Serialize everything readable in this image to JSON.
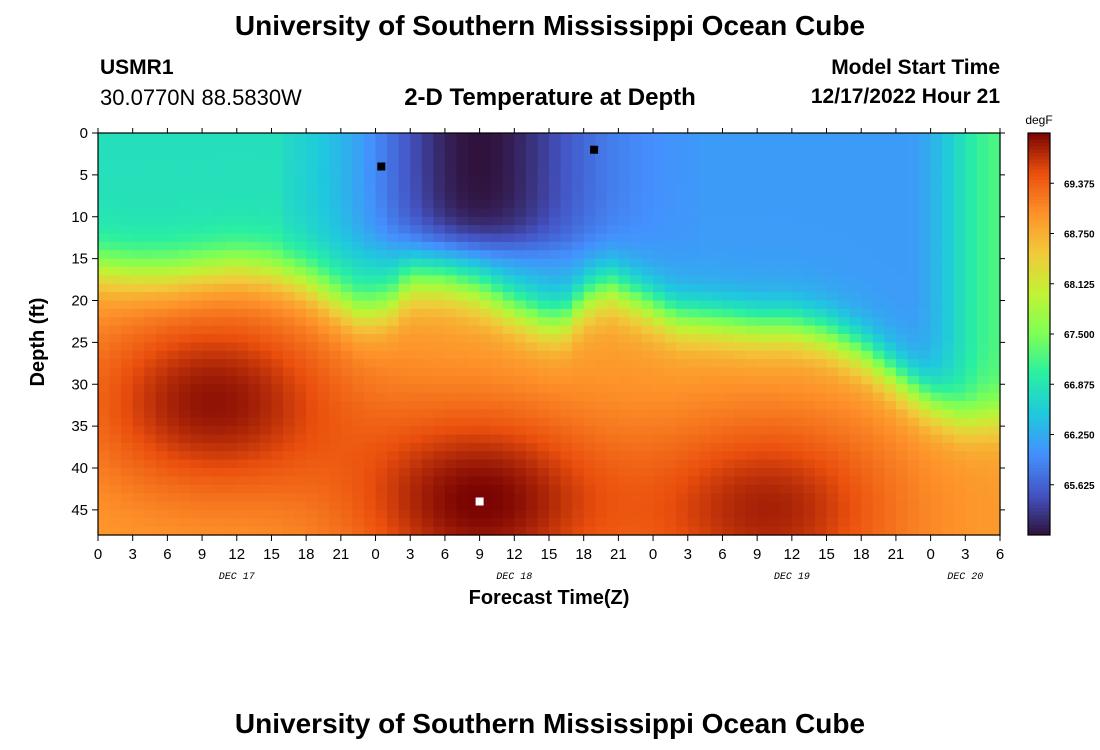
{
  "header": {
    "title": "University of Southern Mississippi Ocean Cube",
    "station_id": "USMR1",
    "station_coords": "30.0770N  88.5830W",
    "chart_title": "2-D Temperature at Depth",
    "model_start_label": "Model Start Time",
    "model_start_time": "12/17/2022 Hour 21"
  },
  "footer": {
    "title": "University of Southern Mississippi Ocean Cube"
  },
  "chart_data": {
    "type": "heatmap",
    "title": "2-D Temperature at Depth",
    "xlabel": "Forecast Time(Z)",
    "ylabel": "Depth (ft)",
    "x_hours_range": [
      0,
      78
    ],
    "x_tick_labels": [
      "0",
      "3",
      "6",
      "9",
      "12",
      "15",
      "18",
      "21",
      "0",
      "3",
      "6",
      "9",
      "12",
      "15",
      "18",
      "21",
      "0",
      "3",
      "6",
      "9",
      "12",
      "15",
      "18",
      "21",
      "0",
      "3",
      "6"
    ],
    "day_labels": [
      {
        "label": "DEC 17",
        "x_hours": 12
      },
      {
        "label": "DEC 18",
        "x_hours": 36
      },
      {
        "label": "DEC 19",
        "x_hours": 60
      },
      {
        "label": "DEC 20",
        "x_hours": 75
      }
    ],
    "ylim": [
      0,
      48
    ],
    "y_ticks": [
      0,
      5,
      10,
      15,
      20,
      25,
      30,
      35,
      40,
      45
    ],
    "y_inverted": true,
    "colorbar": {
      "unit": "degF",
      "range": [
        65.0,
        70.0
      ],
      "tick_values": [
        69.375,
        68.75,
        68.125,
        67.5,
        66.875,
        66.25,
        65.625
      ],
      "tick_labels": [
        "69.375",
        "68.750",
        "68.125",
        "67.500",
        "66.875",
        "66.250",
        "65.625"
      ],
      "colormap": "turbo"
    },
    "markers": [
      {
        "kind": "min",
        "x_hours": 24.5,
        "depth_ft": 4,
        "color": "#000000"
      },
      {
        "kind": "min",
        "x_hours": 42.9,
        "depth_ft": 2,
        "color": "#000000"
      },
      {
        "kind": "max",
        "x_hours": 33.0,
        "depth_ft": 44,
        "color": "#ffffff"
      }
    ],
    "thermocline_depth_ft": {
      "x_hours": [
        0,
        3,
        6,
        9,
        12,
        15,
        17,
        18,
        21,
        22.5,
        24,
        25.5,
        27,
        30,
        33,
        36,
        39,
        40.5,
        42,
        43,
        44.5,
        47,
        50,
        54,
        57,
        60,
        63,
        66,
        69,
        72,
        75,
        78
      ],
      "depth": [
        16,
        16.5,
        16.5,
        16,
        15.5,
        16,
        17,
        17.5,
        20,
        21,
        21,
        20,
        18,
        18,
        19,
        21,
        22.5,
        22,
        20,
        19,
        18.5,
        20,
        22,
        22.5,
        23,
        23,
        24,
        26,
        29,
        32,
        34,
        34
      ]
    },
    "cold_pool": {
      "x_hours_range": [
        18,
        50
      ],
      "center_x_hours": 33,
      "max_depth_ft": 16,
      "min_temp_degF": 65.0
    },
    "deep_warm_cores": [
      {
        "x_hours": 10,
        "depth_ft": 32,
        "temp_degF": 69.9
      },
      {
        "x_hours": 33,
        "depth_ft": 44,
        "temp_degF": 70.0
      },
      {
        "x_hours": 58,
        "depth_ft": 45,
        "temp_degF": 69.8
      }
    ],
    "surface_temps_degF": {
      "west_x_hours_0_15": 66.8,
      "east_x_hours_50_70": 66.1,
      "east_edge_x_hours_78": 67.2
    }
  }
}
